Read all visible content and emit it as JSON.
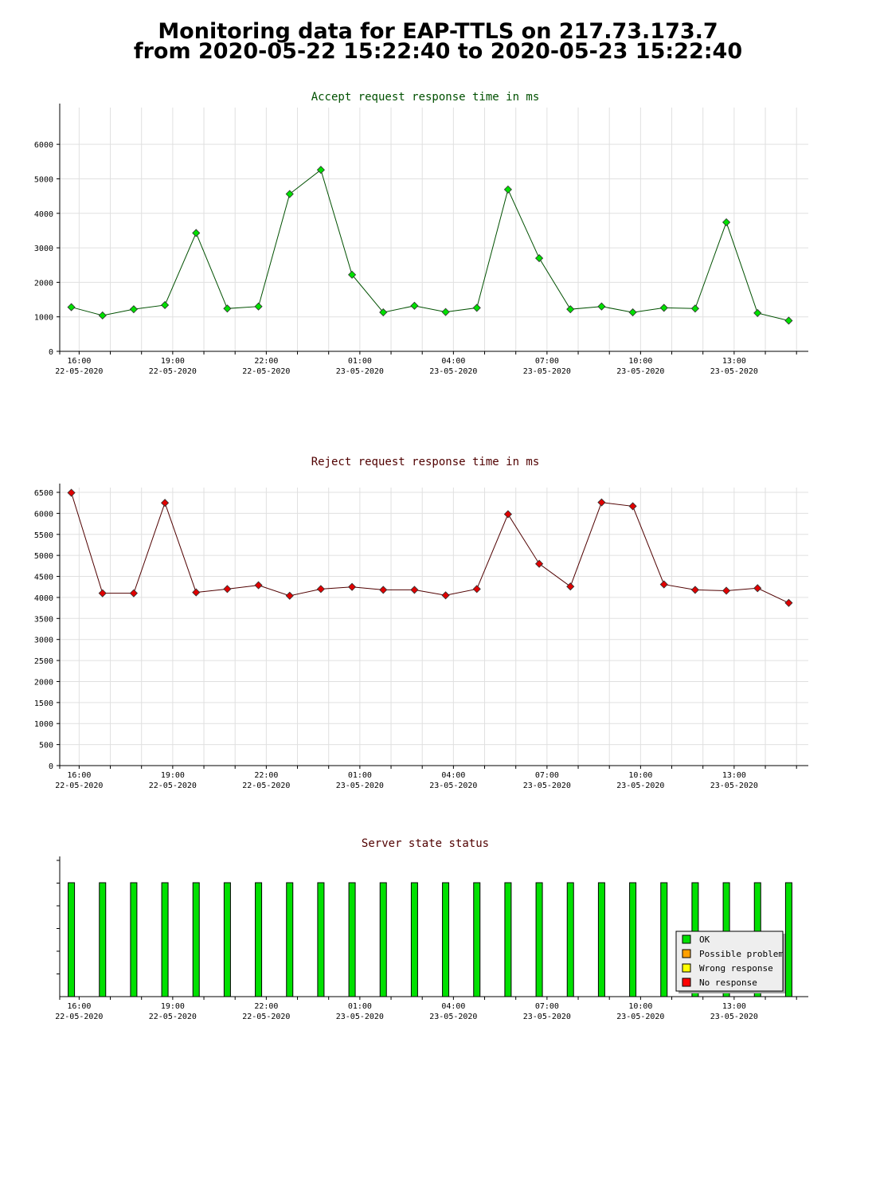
{
  "page": {
    "title_line1": "Monitoring data for EAP-TTLS on 217.73.173.7",
    "title_line2": "from 2020-05-22 15:22:40 to 2020-05-23 15:22:40"
  },
  "colors": {
    "accept_line": "#005000",
    "accept_point": "#00e000",
    "reject_line": "#500000",
    "reject_point": "#e00000",
    "title_accept": "#005000",
    "title_reject": "#500000",
    "status_ok": "#00e000",
    "status_possible": "#ffa000",
    "status_wrong": "#ffff00",
    "status_none": "#ff0000"
  },
  "x_ticks": [
    {
      "time": "16:00",
      "date": "22-05-2020"
    },
    {
      "time": "19:00",
      "date": "22-05-2020"
    },
    {
      "time": "22:00",
      "date": "22-05-2020"
    },
    {
      "time": "01:00",
      "date": "23-05-2020"
    },
    {
      "time": "04:00",
      "date": "23-05-2020"
    },
    {
      "time": "07:00",
      "date": "23-05-2020"
    },
    {
      "time": "10:00",
      "date": "23-05-2020"
    },
    {
      "time": "13:00",
      "date": "23-05-2020"
    }
  ],
  "chart_data": [
    {
      "type": "line",
      "title": "Accept request response time in ms",
      "xlabel": "",
      "ylabel": "",
      "ylim": [
        0,
        6500
      ],
      "yticks": [
        0,
        1000,
        2000,
        3000,
        4000,
        5000,
        6000
      ],
      "grid": true,
      "x": [
        "2020-05-22 15:45",
        "2020-05-22 16:45",
        "2020-05-22 17:45",
        "2020-05-22 18:45",
        "2020-05-22 19:45",
        "2020-05-22 20:45",
        "2020-05-22 21:45",
        "2020-05-22 22:45",
        "2020-05-22 23:45",
        "2020-05-23 00:45",
        "2020-05-23 01:45",
        "2020-05-23 02:45",
        "2020-05-23 03:45",
        "2020-05-23 04:45",
        "2020-05-23 05:45",
        "2020-05-23 06:45",
        "2020-05-23 07:45",
        "2020-05-23 08:45",
        "2020-05-23 09:45",
        "2020-05-23 10:45",
        "2020-05-23 11:45",
        "2020-05-23 12:45",
        "2020-05-23 13:45",
        "2020-05-23 14:45"
      ],
      "values": [
        1280,
        1040,
        1220,
        1340,
        3430,
        1240,
        1300,
        4560,
        5260,
        2220,
        1130,
        1320,
        1140,
        1260,
        4690,
        2700,
        1220,
        1300,
        1130,
        1260,
        1240,
        3740,
        1110,
        890
      ]
    },
    {
      "type": "line",
      "title": "Reject request response time in ms",
      "xlabel": "",
      "ylabel": "",
      "ylim": [
        0,
        6500
      ],
      "yticks": [
        0,
        500,
        1000,
        1500,
        2000,
        2500,
        3000,
        3500,
        4000,
        4500,
        5000,
        5500,
        6000,
        6500
      ],
      "grid": true,
      "x": [
        "2020-05-22 15:45",
        "2020-05-22 16:45",
        "2020-05-22 17:45",
        "2020-05-22 18:45",
        "2020-05-22 19:45",
        "2020-05-22 20:45",
        "2020-05-22 21:45",
        "2020-05-22 22:45",
        "2020-05-22 23:45",
        "2020-05-23 00:45",
        "2020-05-23 01:45",
        "2020-05-23 02:45",
        "2020-05-23 03:45",
        "2020-05-23 04:45",
        "2020-05-23 05:45",
        "2020-05-23 06:45",
        "2020-05-23 07:45",
        "2020-05-23 08:45",
        "2020-05-23 09:45",
        "2020-05-23 10:45",
        "2020-05-23 11:45",
        "2020-05-23 12:45",
        "2020-05-23 13:45",
        "2020-05-23 14:45"
      ],
      "values": [
        6490,
        4100,
        4100,
        6250,
        4120,
        4200,
        4290,
        4040,
        4200,
        4250,
        4180,
        4180,
        4050,
        4200,
        5980,
        4800,
        4260,
        6260,
        6170,
        4310,
        4180,
        4160,
        4220,
        3870
      ]
    },
    {
      "type": "bar",
      "title": "Server state status",
      "xlabel": "",
      "ylabel": "",
      "grid": false,
      "x": [
        "2020-05-22 15:45",
        "2020-05-22 16:45",
        "2020-05-22 17:45",
        "2020-05-22 18:45",
        "2020-05-22 19:45",
        "2020-05-22 20:45",
        "2020-05-22 21:45",
        "2020-05-22 22:45",
        "2020-05-22 23:45",
        "2020-05-23 00:45",
        "2020-05-23 01:45",
        "2020-05-23 02:45",
        "2020-05-23 03:45",
        "2020-05-23 04:45",
        "2020-05-23 05:45",
        "2020-05-23 06:45",
        "2020-05-23 07:45",
        "2020-05-23 08:45",
        "2020-05-23 09:45",
        "2020-05-23 10:45",
        "2020-05-23 11:45",
        "2020-05-23 12:45",
        "2020-05-23 13:45",
        "2020-05-23 14:45"
      ],
      "states": [
        "OK",
        "OK",
        "OK",
        "OK",
        "OK",
        "OK",
        "OK",
        "OK",
        "OK",
        "OK",
        "OK",
        "OK",
        "OK",
        "OK",
        "OK",
        "OK",
        "OK",
        "OK",
        "OK",
        "OK",
        "OK",
        "OK",
        "OK",
        "OK"
      ],
      "legend_position": "bottom-right",
      "legend": [
        {
          "label": "OK",
          "color": "#00e000"
        },
        {
          "label": "Possible problem",
          "color": "#ffa000"
        },
        {
          "label": "Wrong response",
          "color": "#ffff00"
        },
        {
          "label": "No response",
          "color": "#ff0000"
        }
      ]
    }
  ]
}
